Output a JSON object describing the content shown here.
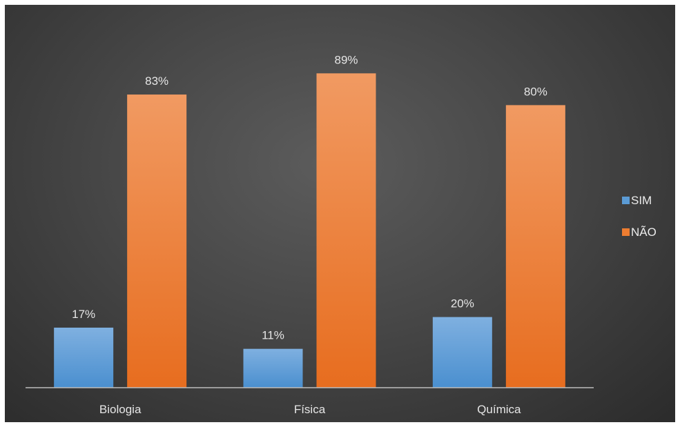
{
  "chart_data": {
    "type": "bar",
    "categories": [
      "Biologia",
      "Física",
      "Química"
    ],
    "series": [
      {
        "name": "SIM",
        "values": [
          17,
          11,
          20
        ],
        "labels": [
          "17%",
          "11%",
          "20%"
        ],
        "color": "#5b9bd5"
      },
      {
        "name": "NÃO",
        "values": [
          83,
          89,
          80
        ],
        "labels": [
          "83%",
          "89%",
          "80%"
        ],
        "color": "#ed7d31"
      }
    ],
    "ylim": [
      0,
      100
    ],
    "grid": false,
    "legend": "right",
    "background": "#474747"
  }
}
